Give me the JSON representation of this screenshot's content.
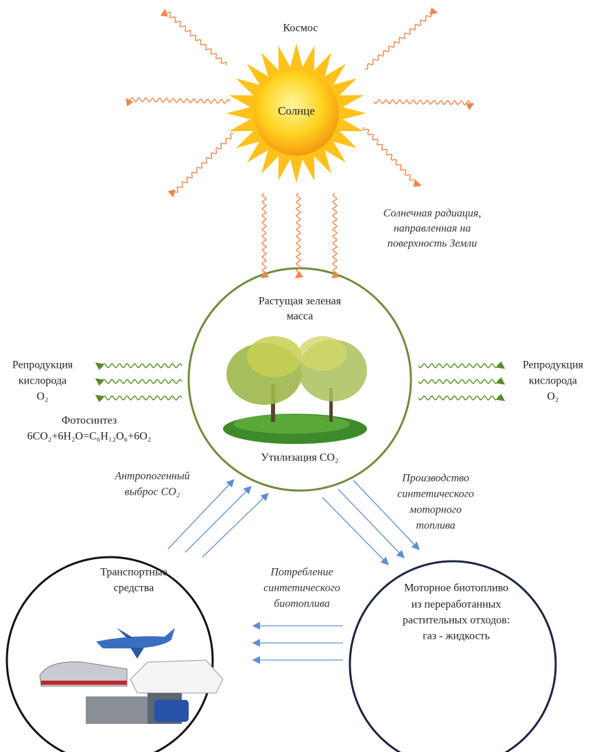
{
  "space": "Космос",
  "sun": "Солнце",
  "solar_radiation": [
    "Солнечная радиация,",
    "направленная на",
    "поверхность Земли"
  ],
  "green_mass": {
    "title": [
      "Растущая зеленая",
      "масса"
    ],
    "caption": "Утилизация CO₂"
  },
  "oxygen_left": [
    "Репродукция",
    "кислорода",
    "O₂"
  ],
  "oxygen_right": [
    "Репродукция",
    "кислорода",
    "O₂"
  ],
  "photosynthesis": {
    "title": "Фотосинтез",
    "formula": "6CO₂+6H₂O=C₆H₁₂O₆+6O₂"
  },
  "emission": [
    "Антропогенный",
    "выброс CO₂"
  ],
  "production": [
    "Производство",
    "синтетического",
    "моторного",
    "топлива"
  ],
  "transport": [
    "Транспортные",
    "средства"
  ],
  "consumption": [
    "Потребление",
    "синтетического",
    "биотоплива"
  ],
  "biofuel": [
    "Моторное биотопливо",
    "из переработанных",
    "растительных отходов:",
    "газ - жидкость"
  ]
}
